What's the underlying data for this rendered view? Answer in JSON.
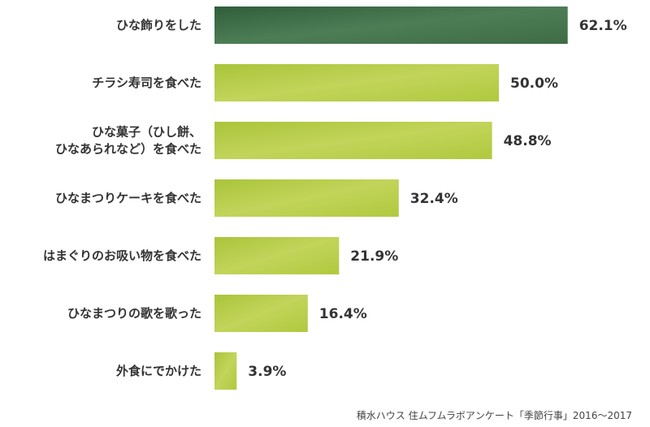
{
  "chart_data": {
    "type": "bar",
    "orientation": "horizontal",
    "categories": [
      [
        "ひな飾りをした"
      ],
      [
        "チラシ寿司を食べた"
      ],
      [
        "ひな菓子（ひし餅、",
        "ひなあられなど）を食べた"
      ],
      [
        "ひなまつりケーキを食べた"
      ],
      [
        "はまぐりのお吸い物を食べた"
      ],
      [
        "ひなまつりの歌を歌った"
      ],
      [
        "外食にでかけた"
      ]
    ],
    "values": [
      62.1,
      50.0,
      48.8,
      32.4,
      21.9,
      16.4,
      3.9
    ],
    "value_labels": [
      "62.1%",
      "50.0%",
      "48.8%",
      "32.4%",
      "21.9%",
      "16.4%",
      "3.9%"
    ],
    "xlim": [
      0,
      100
    ],
    "highlight_index": 0,
    "colors": {
      "highlight": "#3f6e48",
      "default": "#b5cc3c"
    },
    "grid": false,
    "legend": "none"
  },
  "source": "積水ハウス 住ムフムラボアンケート「季節行事」2016〜2017"
}
